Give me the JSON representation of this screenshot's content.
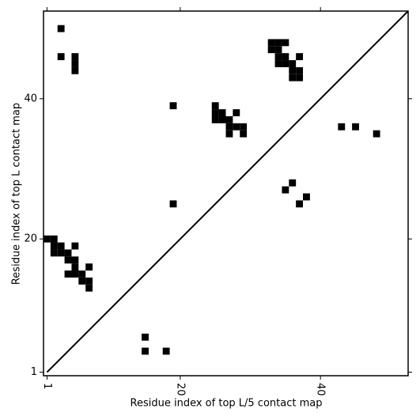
{
  "chart_data": {
    "type": "scatter",
    "marker": "square",
    "color": "#000000",
    "xlabel": "Residue index of top L/5 contact map",
    "ylabel": "Residue index of top L contact map",
    "x": [
      3,
      3,
      5,
      5,
      5,
      19,
      25,
      25,
      26,
      28,
      25,
      26,
      27,
      27,
      28,
      29,
      27,
      29,
      33,
      34,
      35,
      33,
      34,
      34,
      35,
      37,
      34,
      35,
      36,
      36,
      37,
      36,
      37,
      43,
      45,
      48,
      36,
      35,
      38,
      37,
      19,
      1,
      2,
      2,
      3,
      5,
      2,
      3,
      4,
      4,
      5,
      5,
      7,
      4,
      5,
      6,
      6,
      7,
      7,
      15,
      15,
      18
    ],
    "y": [
      50,
      46,
      46,
      45,
      44,
      39,
      39,
      38,
      38,
      38,
      37,
      37,
      37,
      36,
      36,
      36,
      35,
      35,
      48,
      48,
      48,
      47,
      47,
      46,
      46,
      46,
      45,
      45,
      45,
      44,
      44,
      43,
      43,
      36,
      36,
      35,
      28,
      27,
      26,
      25,
      25,
      20,
      20,
      19,
      19,
      19,
      18,
      18,
      18,
      17,
      17,
      16,
      16,
      15,
      15,
      15,
      14,
      14,
      13,
      6,
      4,
      4
    ],
    "xlim": [
      0.5,
      52.5
    ],
    "ylim": [
      0.5,
      52.5
    ],
    "xticks": [
      1,
      20,
      40
    ],
    "yticks": [
      1,
      20,
      40
    ],
    "diagonal": true
  }
}
